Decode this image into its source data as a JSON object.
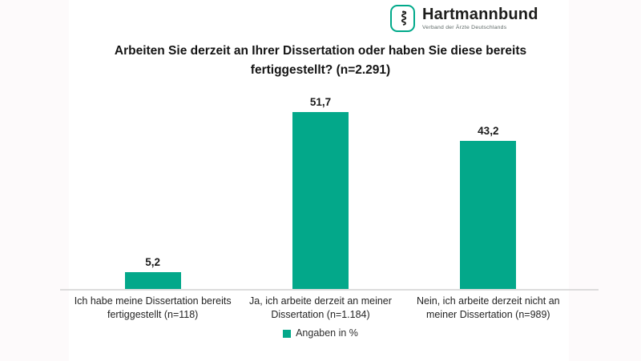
{
  "page": {
    "background": "#ffffff",
    "edge_band_color": "#fdfafb"
  },
  "logo": {
    "name": "Hartmannbund",
    "tagline": "Verband der Ärzte Deutschlands",
    "icon": "aesculapius-snake-icon",
    "icon_border_color": "#00a98a",
    "text_color": "#1d1d1b"
  },
  "chart_data": {
    "type": "bar",
    "title": "Arbeiten Sie derzeit an Ihrer Dissertation oder haben Sie diese bereits\nfertiggestellt? (n=2.291)",
    "total_n": 2291,
    "categories": [
      "Ich habe meine Dissertation bereits fertiggestellt (n=118)",
      "Ja, ich arbeite derzeit an meiner Dissertation (n=1.184)",
      "Nein, ich arbeite derzeit nicht an meiner Dissertation (n=989)"
    ],
    "values": [
      5.2,
      51.7,
      43.2
    ],
    "value_labels": [
      "5,2",
      "51,7",
      "43,2"
    ],
    "sample_sizes": [
      118,
      1184,
      989
    ],
    "unit": "%",
    "legend": [
      "Angaben in %"
    ],
    "legend_position": "bottom",
    "bar_color": "#03a88a",
    "axis_line_color": "#dcdcdc",
    "ylim": [
      0,
      55
    ],
    "grid": false,
    "y_axis_visible": false
  }
}
